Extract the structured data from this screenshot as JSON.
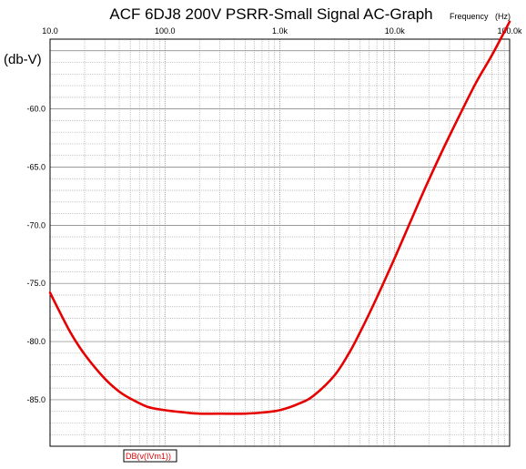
{
  "chart_data": {
    "type": "line",
    "title": "ACF 6DJ8 200V PSRR-Small Signal AC-Graph",
    "xlabel": "Frequency   (Hz)",
    "ylabel": "(db-V)",
    "x_scale": "log",
    "xlim": [
      10,
      100000
    ],
    "ylim": [
      -89,
      -54
    ],
    "grid": true,
    "x_tick_labels": [
      {
        "value": 10,
        "label": "10.0"
      },
      {
        "value": 100,
        "label": "100.0"
      },
      {
        "value": 1000,
        "label": "1.0k"
      },
      {
        "value": 10000,
        "label": "10.0k"
      },
      {
        "value": 100000,
        "label": "100.0k"
      }
    ],
    "y_tick_labels": [
      {
        "value": -60,
        "label": "-60.0"
      },
      {
        "value": -65,
        "label": "-65.0"
      },
      {
        "value": -70,
        "label": "-70.0"
      },
      {
        "value": -75,
        "label": "-75.0"
      },
      {
        "value": -80,
        "label": "-80.0"
      },
      {
        "value": -85,
        "label": "-85.0"
      }
    ],
    "series": [
      {
        "name": "DB(v(IVm1))",
        "color": "#e60000",
        "x": [
          10,
          15,
          20,
          30,
          40,
          50,
          70,
          100,
          150,
          200,
          300,
          500,
          700,
          1000,
          1500,
          2000,
          3000,
          4000,
          5000,
          7000,
          10000,
          15000,
          20000,
          30000,
          50000,
          70000,
          100000
        ],
        "y": [
          -75.8,
          -79.2,
          -81.1,
          -83.2,
          -84.3,
          -84.9,
          -85.6,
          -85.9,
          -86.1,
          -86.2,
          -86.2,
          -86.2,
          -86.1,
          -85.9,
          -85.3,
          -84.6,
          -82.9,
          -81.0,
          -79.2,
          -76.2,
          -72.8,
          -68.8,
          -66.0,
          -62.3,
          -57.9,
          -55.4,
          -52.5
        ]
      }
    ]
  }
}
